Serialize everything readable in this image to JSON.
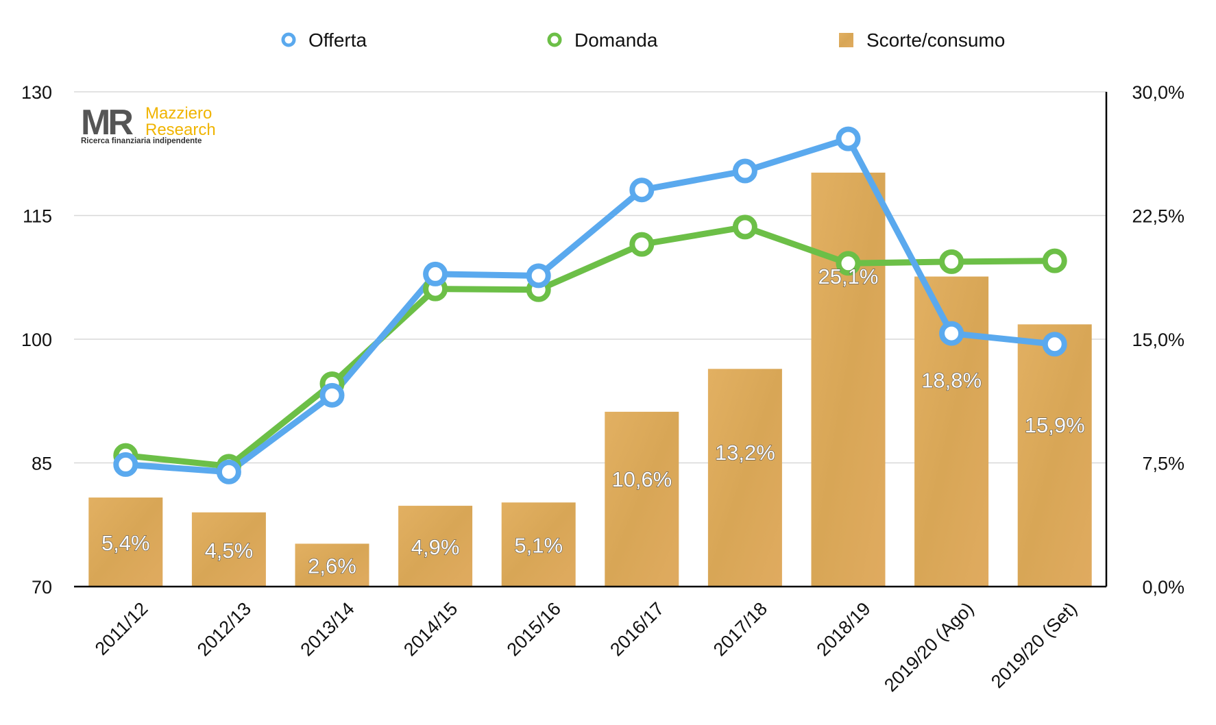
{
  "chart_data": {
    "type": "bar+line",
    "categories": [
      "2011/12",
      "2012/13",
      "2013/14",
      "2014/15",
      "2015/16",
      "2016/17",
      "2017/18",
      "2018/19",
      "2019/20 (Ago)",
      "2019/20 (Set)"
    ],
    "series": [
      {
        "name": "Offerta",
        "type": "line",
        "axis": "left",
        "color": "#5aa9ee",
        "values": [
          84.8,
          83.9,
          93.2,
          107.9,
          107.7,
          118.1,
          120.4,
          124.3,
          100.7,
          99.4
        ]
      },
      {
        "name": "Domanda",
        "type": "line",
        "axis": "left",
        "color": "#6cbf47",
        "values": [
          85.9,
          84.6,
          94.6,
          106.1,
          106.0,
          111.5,
          113.6,
          109.2,
          109.4,
          109.5
        ]
      },
      {
        "name": "Scorte/consumo",
        "type": "bar",
        "axis": "right",
        "color": "#dca85c",
        "values": [
          5.4,
          4.5,
          2.6,
          4.9,
          5.1,
          10.6,
          13.2,
          25.1,
          18.8,
          15.9
        ],
        "labels": [
          "5,4%",
          "4,5%",
          "2,6%",
          "4,9%",
          "5,1%",
          "10,6%",
          "13,2%",
          "25,1%",
          "18,8%",
          "15,9%"
        ]
      }
    ],
    "y_left": {
      "range": [
        70,
        130
      ],
      "ticks": [
        "70",
        "85",
        "100",
        "115",
        "130"
      ]
    },
    "y_right": {
      "range": [
        0,
        30
      ],
      "ticks": [
        "0,0%",
        "7,5%",
        "15,0%",
        "22,5%",
        "30,0%"
      ]
    },
    "grid": true,
    "legend": "top"
  },
  "logo": {
    "initials": "MR",
    "name_line1": "Mazziero",
    "name_line2": "Research",
    "tagline": "Ricerca finanziaria indipendente"
  }
}
